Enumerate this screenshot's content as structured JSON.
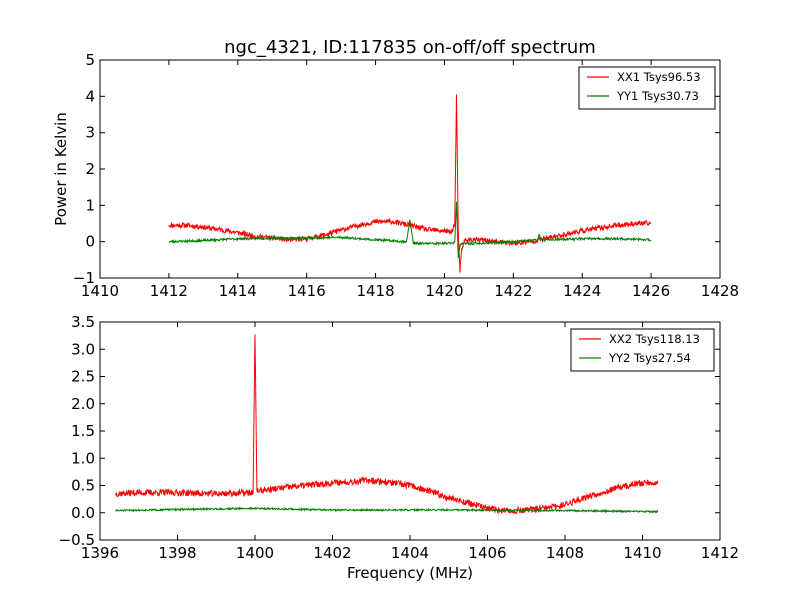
{
  "title": "ngc_4321, ID:117835 on-off/off spectrum",
  "chart_data": [
    {
      "type": "line",
      "ylabel": "Power in Kelvin",
      "xlabel": "",
      "xlim": [
        1410,
        1428
      ],
      "ylim": [
        -1,
        5
      ],
      "xticks": [
        "1410",
        "1412",
        "1414",
        "1416",
        "1418",
        "1420",
        "1422",
        "1424",
        "1426",
        "1428"
      ],
      "yticks": [
        "−1",
        "0",
        "1",
        "2",
        "3",
        "4",
        "5"
      ],
      "legend_position": "top-right",
      "grid": false,
      "series": [
        {
          "name": "XX1 Tsys96.53",
          "color": "#ff0000",
          "x": [
            1412.0,
            1412.5,
            1413.0,
            1413.5,
            1414.0,
            1414.5,
            1415.0,
            1415.5,
            1416.0,
            1416.5,
            1417.0,
            1417.5,
            1418.0,
            1418.5,
            1419.0,
            1419.5,
            1420.0,
            1420.2,
            1420.3,
            1420.35,
            1420.4,
            1420.45,
            1420.5,
            1420.6,
            1421.0,
            1421.5,
            1422.0,
            1422.5,
            1423.0,
            1423.5,
            1424.0,
            1424.5,
            1425.0,
            1425.5,
            1426.0
          ],
          "y": [
            0.45,
            0.45,
            0.4,
            0.33,
            0.25,
            0.15,
            0.1,
            0.05,
            0.08,
            0.18,
            0.32,
            0.45,
            0.55,
            0.55,
            0.45,
            0.33,
            0.3,
            0.25,
            0.5,
            4.05,
            0.3,
            -0.85,
            -0.2,
            0.05,
            0.05,
            0.0,
            -0.05,
            0.0,
            0.1,
            0.2,
            0.3,
            0.38,
            0.45,
            0.5,
            0.5
          ],
          "noise": 0.07,
          "seed": 11
        },
        {
          "name": "YY1 Tsys30.73",
          "color": "#008000",
          "x": [
            1412.0,
            1413.0,
            1414.0,
            1415.0,
            1416.0,
            1417.0,
            1418.0,
            1418.9,
            1419.0,
            1419.1,
            1420.0,
            1420.3,
            1420.35,
            1420.4,
            1420.45,
            1420.5,
            1421.0,
            1422.0,
            1422.7,
            1422.75,
            1422.8,
            1423.0,
            1424.0,
            1425.0,
            1426.0
          ],
          "y": [
            0.0,
            0.03,
            0.08,
            0.1,
            0.1,
            0.12,
            0.05,
            0.0,
            0.6,
            -0.05,
            -0.05,
            -0.02,
            1.1,
            -0.45,
            -0.1,
            -0.05,
            -0.05,
            0.0,
            0.05,
            0.2,
            0.05,
            0.05,
            0.08,
            0.08,
            0.05
          ],
          "noise": 0.03,
          "seed": 23
        }
      ]
    },
    {
      "type": "line",
      "ylabel": "",
      "xlabel": "Frequency (MHz)",
      "xlim": [
        1396,
        1412
      ],
      "ylim": [
        -0.5,
        3.5
      ],
      "xticks": [
        "1396",
        "1398",
        "1400",
        "1402",
        "1404",
        "1406",
        "1408",
        "1410",
        "1412"
      ],
      "yticks": [
        "−0.5",
        "0.0",
        "0.5",
        "1.0",
        "1.5",
        "2.0",
        "2.5",
        "3.0",
        "3.5"
      ],
      "legend_position": "top-right",
      "grid": false,
      "series": [
        {
          "name": "XX2 Tsys118.13",
          "color": "#ff0000",
          "x": [
            1396.4,
            1397.0,
            1398.0,
            1399.0,
            1399.95,
            1400.0,
            1400.05,
            1401.0,
            1402.0,
            1403.0,
            1404.0,
            1405.0,
            1406.0,
            1406.5,
            1407.0,
            1407.5,
            1408.0,
            1408.5,
            1409.0,
            1409.5,
            1410.0,
            1410.4
          ],
          "y": [
            0.35,
            0.37,
            0.37,
            0.35,
            0.37,
            3.27,
            0.4,
            0.48,
            0.55,
            0.6,
            0.5,
            0.28,
            0.08,
            0.03,
            0.05,
            0.08,
            0.15,
            0.28,
            0.38,
            0.48,
            0.55,
            0.55
          ],
          "noise": 0.06,
          "seed": 37
        },
        {
          "name": "YY2 Tsys27.54",
          "color": "#008000",
          "x": [
            1396.4,
            1398.0,
            1400.0,
            1402.0,
            1404.0,
            1406.0,
            1408.0,
            1410.4
          ],
          "y": [
            0.04,
            0.06,
            0.08,
            0.05,
            0.05,
            0.05,
            0.04,
            0.02
          ],
          "noise": 0.015,
          "seed": 51
        }
      ]
    }
  ]
}
